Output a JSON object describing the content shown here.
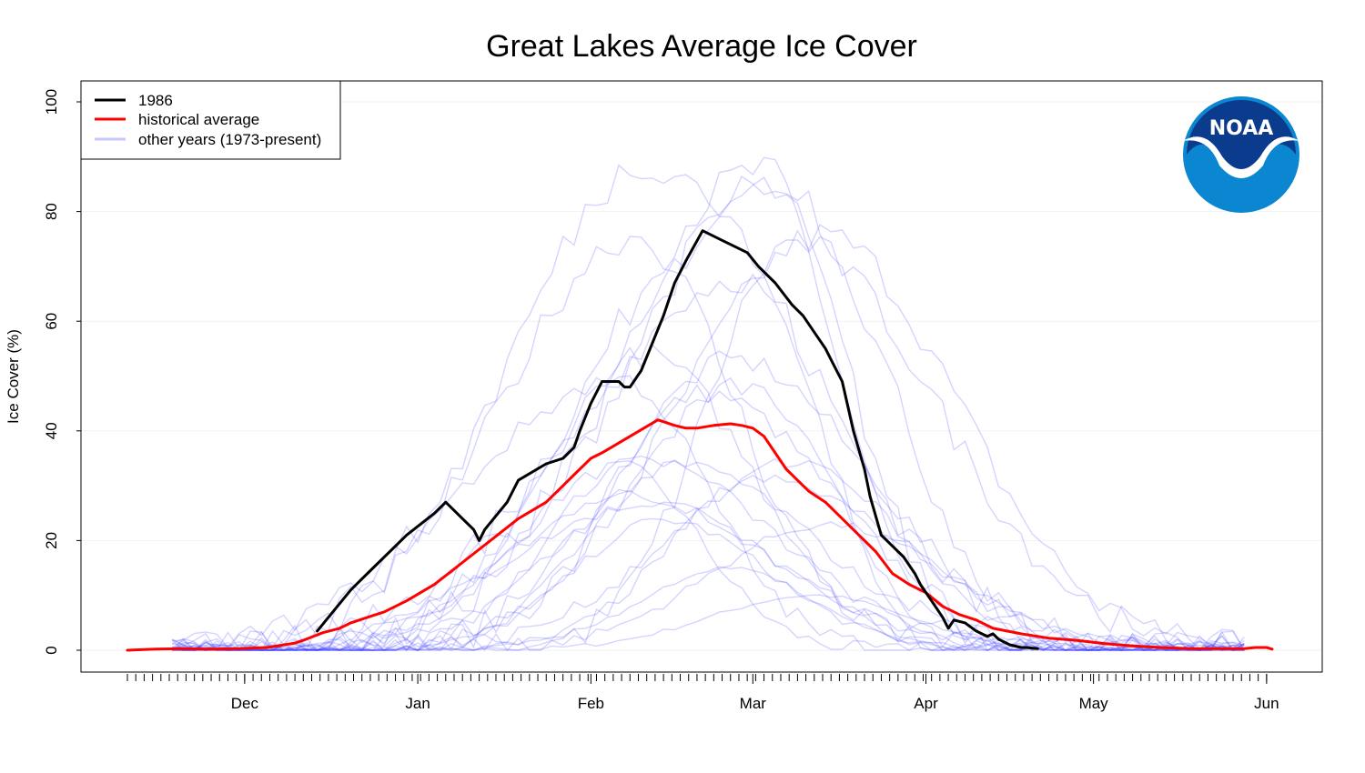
{
  "chart_data": {
    "type": "line",
    "title": "Great Lakes Average Ice Cover",
    "xlabel": "",
    "ylabel": "Ice Cover (%)",
    "ylim": [
      0,
      100
    ],
    "yticks": [
      0,
      20,
      40,
      60,
      80,
      100
    ],
    "x_unit": "days since Nov 10",
    "xlim": [
      0,
      205
    ],
    "month_ticks": [
      {
        "label": "Dec",
        "day": 21
      },
      {
        "label": "Jan",
        "day": 52
      },
      {
        "label": "Feb",
        "day": 83
      },
      {
        "label": "Mar",
        "day": 112
      },
      {
        "label": "Apr",
        "day": 143
      },
      {
        "label": "May",
        "day": 173
      },
      {
        "label": "Jun",
        "day": 204
      }
    ],
    "legend": {
      "placement": "top-left",
      "entries": [
        {
          "label": "1986",
          "color": "#000000"
        },
        {
          "label": "historical average",
          "color": "#ff0000"
        },
        {
          "label": "other years (1973-present)",
          "color": "#c8c8ff"
        }
      ]
    },
    "logo": {
      "text": "NOAA",
      "dark_color": "#0b3b8c",
      "light_color": "#0a87d0"
    },
    "series": [
      {
        "name": "1986",
        "color": "#000000",
        "x": [
          34,
          36,
          40,
          42,
          44,
          48,
          50,
          55,
          57,
          60,
          62,
          63,
          64,
          68,
          70,
          75,
          78,
          80,
          81,
          83,
          85,
          88,
          89,
          90,
          92,
          96,
          98,
          100,
          103,
          104,
          106,
          108,
          111,
          113,
          116,
          119,
          121,
          123,
          125,
          126,
          128,
          130,
          132,
          133,
          135,
          137,
          139,
          141,
          142,
          144,
          146,
          147,
          148,
          150,
          152,
          154,
          155,
          156,
          158,
          160,
          161,
          163
        ],
        "values": [
          3.5,
          6,
          11,
          13,
          15,
          19,
          21,
          25,
          27,
          24,
          22,
          20,
          22,
          27,
          31,
          34,
          35,
          37,
          40,
          45,
          49,
          49,
          48,
          48,
          51,
          61,
          67,
          71,
          76.5,
          76,
          75,
          74,
          72.5,
          70,
          67,
          63,
          61,
          58,
          55,
          53,
          49,
          40,
          33,
          28,
          21,
          19,
          17,
          14,
          12,
          9,
          6,
          4,
          5.5,
          5,
          3.5,
          2.5,
          3,
          2,
          1,
          0.5,
          0.5,
          0.3
        ]
      },
      {
        "name": "historical average",
        "color": "#ff0000",
        "x": [
          0,
          5,
          10,
          15,
          20,
          25,
          30,
          32,
          35,
          38,
          40,
          43,
          46,
          50,
          55,
          60,
          65,
          70,
          75,
          78,
          80,
          83,
          85,
          90,
          95,
          98,
          100,
          102,
          105,
          108,
          110,
          112,
          114,
          116,
          118,
          120,
          122,
          125,
          128,
          131,
          134,
          137,
          140,
          143,
          146,
          149,
          152,
          155,
          160,
          165,
          170,
          175,
          180,
          185,
          190,
          195,
          200,
          202,
          204,
          205
        ],
        "values": [
          0,
          0.2,
          0.3,
          0.2,
          0.3,
          0.5,
          1.3,
          2,
          3.2,
          4,
          5,
          6,
          7,
          9,
          12,
          16,
          20,
          24,
          27,
          30,
          32,
          35,
          36,
          39,
          42,
          41,
          40.5,
          40.5,
          41,
          41.3,
          41,
          40.5,
          39,
          36,
          33,
          31,
          29,
          27,
          24,
          21,
          18,
          14,
          12,
          10.5,
          8,
          6.5,
          5.5,
          4,
          3,
          2.2,
          1.8,
          1.2,
          0.8,
          0.5,
          0.3,
          0.3,
          0.3,
          0.5,
          0.5,
          0.2
        ]
      }
    ],
    "background_series_count": 24
  }
}
